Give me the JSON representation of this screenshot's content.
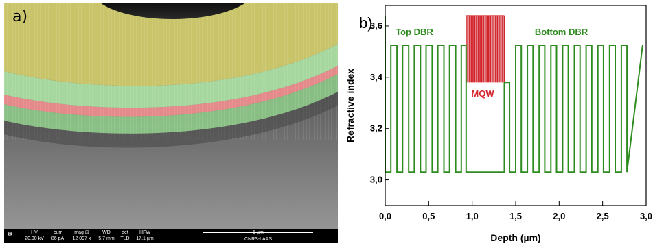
{
  "panels": {
    "left_label": "a)",
    "right_label": "b)"
  },
  "sem": {
    "info_bar": {
      "fields": [
        {
          "key": "HV",
          "value": "20.00 kV"
        },
        {
          "key": "curr",
          "value": "86 pA"
        },
        {
          "key": "mag ⊞",
          "value": "12 097 x"
        },
        {
          "key": "WD",
          "value": "5.7 mm"
        },
        {
          "key": "det",
          "value": "TLD"
        },
        {
          "key": "HFW",
          "value": "17.1 µm"
        }
      ],
      "scale_label": "5 µm",
      "lab": "CNRS-LAAS"
    },
    "colors": {
      "top_layer": "#c9c46a",
      "dbr_green": "#9fd39a",
      "mqw_red": "#e58a8a",
      "substrate": "#7a7a7a"
    }
  },
  "chart_data": {
    "type": "line",
    "xlabel": "Depth (µm)",
    "ylabel": "Refractive index",
    "xlim": [
      0.0,
      3.0
    ],
    "ylim": [
      2.9,
      3.68
    ],
    "x_ticks": [
      "0,0",
      "0,5",
      "1,0",
      "1,5",
      "2,0",
      "2,5",
      "3,0"
    ],
    "y_ticks": [
      "3,0",
      "3,2",
      "3,4",
      "3,6"
    ],
    "annotations": [
      {
        "text": "Top DBR",
        "color": "#2e8b1f"
      },
      {
        "text": "MQW",
        "color": "#d3242b"
      },
      {
        "text": "Bottom DBR",
        "color": "#2e8b1f"
      }
    ],
    "colors": {
      "dbr": "#2e8b1f",
      "mqw": "#d3242b"
    },
    "series": [
      {
        "values": {
          "x": [
            0.0,
            0.0,
            0.065,
            0.065,
            0.135,
            0.135,
            0.2,
            0.2,
            0.27,
            0.27,
            0.335,
            0.335,
            0.405,
            0.405,
            0.47,
            0.47,
            0.54,
            0.54,
            0.605,
            0.605,
            0.675,
            0.675,
            0.74,
            0.74,
            0.81,
            0.81,
            0.875,
            0.875,
            0.93,
            0.93,
            1.37,
            1.37,
            1.43,
            1.43,
            1.5,
            1.5,
            1.565,
            1.565,
            1.635,
            1.635,
            1.7,
            1.7,
            1.77,
            1.77,
            1.835,
            1.835,
            1.905,
            1.905,
            1.97,
            1.97,
            2.04,
            2.04,
            2.105,
            2.105,
            2.175,
            2.175,
            2.24,
            2.24,
            2.31,
            2.31,
            2.375,
            2.375,
            2.445,
            2.445,
            2.51,
            2.51,
            2.58,
            2.58,
            2.645,
            2.645,
            2.715,
            2.715,
            2.78,
            2.78,
            2.96
          ],
          "y": [
            3.64,
            3.03,
            3.03,
            3.525,
            3.525,
            3.03,
            3.03,
            3.525,
            3.525,
            3.03,
            3.03,
            3.525,
            3.525,
            3.03,
            3.03,
            3.525,
            3.525,
            3.03,
            3.03,
            3.525,
            3.525,
            3.03,
            3.03,
            3.525,
            3.525,
            3.03,
            3.03,
            3.525,
            3.525,
            3.03,
            3.03,
            3.38,
            3.38,
            3.03,
            3.03,
            3.525,
            3.525,
            3.03,
            3.03,
            3.525,
            3.525,
            3.03,
            3.03,
            3.525,
            3.525,
            3.03,
            3.03,
            3.525,
            3.525,
            3.03,
            3.03,
            3.525,
            3.525,
            3.03,
            3.03,
            3.525,
            3.525,
            3.03,
            3.03,
            3.525,
            3.525,
            3.03,
            3.03,
            3.525,
            3.525,
            3.03,
            3.03,
            3.525,
            3.525,
            3.03,
            3.03,
            3.525,
            3.525,
            3.03,
            3.525
          ]
        }
      }
    ],
    "mqw_region": {
      "x_start": 0.93,
      "x_end": 1.37,
      "y_low": 3.38,
      "y_high": 3.64,
      "wells": 22
    }
  }
}
